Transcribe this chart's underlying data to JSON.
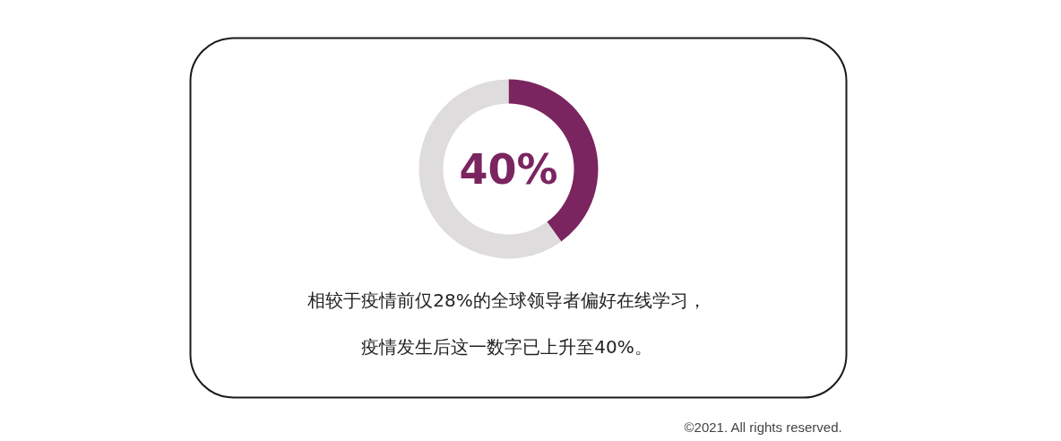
{
  "chart_data": {
    "type": "donut",
    "categories": [
      null,
      null
    ],
    "values": [
      40,
      60
    ],
    "colors": [
      "#7a2560",
      "#dedcdd"
    ],
    "value_labels": [
      "40%",
      null
    ],
    "annotations": [
      "相较于疫情前仅28%的全球领导者偏好在线学习，",
      "疫情发生后这一数字已上升至40%。",
      "©2021. All rights reserved."
    ]
  }
}
